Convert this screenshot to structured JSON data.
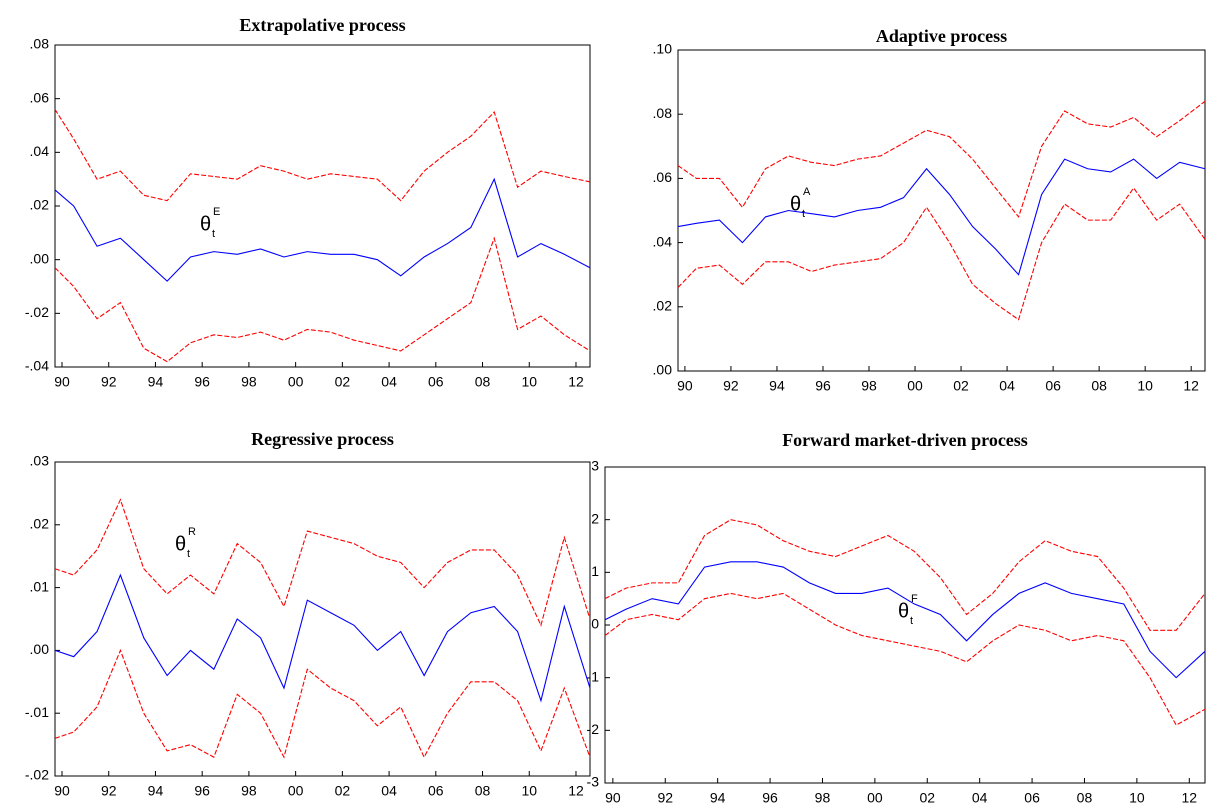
{
  "chart_data": [
    {
      "type": "line",
      "title": "Extrapolative process",
      "annotation": {
        "text": "θ",
        "sub": "t",
        "sup": "E"
      },
      "x": [
        1989.7,
        1990.5,
        1991.5,
        1992.5,
        1993.5,
        1994.5,
        1995.5,
        1996.5,
        1997.5,
        1998.5,
        1999.5,
        2000.5,
        2001.5,
        2002.5,
        2003.5,
        2004.5,
        2005.5,
        2006.5,
        2007.5,
        2008.5,
        2009.5,
        2010.5,
        2011.5,
        2012.6
      ],
      "xlim": [
        1989.7,
        2012.6
      ],
      "xticks": [
        {
          "value": 1990,
          "label": "90"
        },
        {
          "value": 1992,
          "label": "92"
        },
        {
          "value": 1994,
          "label": "94"
        },
        {
          "value": 1996,
          "label": "96"
        },
        {
          "value": 1998,
          "label": "98"
        },
        {
          "value": 2000,
          "label": "00"
        },
        {
          "value": 2002,
          "label": "02"
        },
        {
          "value": 2004,
          "label": "04"
        },
        {
          "value": 2006,
          "label": "06"
        },
        {
          "value": 2008,
          "label": "08"
        },
        {
          "value": 2010,
          "label": "10"
        },
        {
          "value": 2012,
          "label": "12"
        }
      ],
      "ylim": [
        -0.04,
        0.08
      ],
      "yticks": [
        {
          "value": -0.04,
          "label": "-.04"
        },
        {
          "value": -0.02,
          "label": "-.02"
        },
        {
          "value": 0,
          "label": ".00"
        },
        {
          "value": 0.02,
          "label": ".02"
        },
        {
          "value": 0.04,
          "label": ".04"
        },
        {
          "value": 0.06,
          "label": ".06"
        },
        {
          "value": 0.08,
          "label": ".08"
        }
      ],
      "series": [
        {
          "color": "#0000ff",
          "dashed": false,
          "values": [
            0.026,
            0.02,
            0.005,
            0.008,
            0.0,
            -0.008,
            0.001,
            0.003,
            0.002,
            0.004,
            0.001,
            0.003,
            0.002,
            0.002,
            0.0,
            -0.006,
            0.001,
            0.006,
            0.012,
            0.03,
            0.001,
            0.006,
            0.002,
            -0.003
          ]
        },
        {
          "color": "#ff0000",
          "dashed": true,
          "values": [
            0.056,
            0.045,
            0.03,
            0.033,
            0.024,
            0.022,
            0.032,
            0.031,
            0.03,
            0.035,
            0.033,
            0.03,
            0.032,
            0.031,
            0.03,
            0.022,
            0.033,
            0.04,
            0.046,
            0.055,
            0.027,
            0.033,
            0.031,
            0.029
          ]
        },
        {
          "color": "#ff0000",
          "dashed": true,
          "values": [
            -0.003,
            -0.01,
            -0.022,
            -0.016,
            -0.033,
            -0.038,
            -0.031,
            -0.028,
            -0.029,
            -0.027,
            -0.03,
            -0.026,
            -0.027,
            -0.03,
            -0.032,
            -0.034,
            -0.028,
            -0.022,
            -0.016,
            0.008,
            -0.026,
            -0.021,
            -0.028,
            -0.034
          ]
        }
      ]
    },
    {
      "type": "line",
      "title": "Adaptive process",
      "annotation": {
        "text": "θ",
        "sub": "t",
        "sup": "A"
      },
      "x": [
        1989.7,
        1990.5,
        1991.5,
        1992.5,
        1993.5,
        1994.5,
        1995.5,
        1996.5,
        1997.5,
        1998.5,
        1999.5,
        2000.5,
        2001.5,
        2002.5,
        2003.5,
        2004.5,
        2005.5,
        2006.5,
        2007.5,
        2008.5,
        2009.5,
        2010.5,
        2011.5,
        2012.6
      ],
      "xlim": [
        1989.7,
        2012.6
      ],
      "xticks": [
        {
          "value": 1990,
          "label": "90"
        },
        {
          "value": 1992,
          "label": "92"
        },
        {
          "value": 1994,
          "label": "94"
        },
        {
          "value": 1996,
          "label": "96"
        },
        {
          "value": 1998,
          "label": "98"
        },
        {
          "value": 2000,
          "label": "00"
        },
        {
          "value": 2002,
          "label": "02"
        },
        {
          "value": 2004,
          "label": "04"
        },
        {
          "value": 2006,
          "label": "06"
        },
        {
          "value": 2008,
          "label": "08"
        },
        {
          "value": 2010,
          "label": "10"
        },
        {
          "value": 2012,
          "label": "12"
        }
      ],
      "ylim": [
        0,
        0.1
      ],
      "yticks": [
        {
          "value": 0,
          "label": ".00"
        },
        {
          "value": 0.02,
          "label": ".02"
        },
        {
          "value": 0.04,
          "label": ".04"
        },
        {
          "value": 0.06,
          "label": ".06"
        },
        {
          "value": 0.08,
          "label": ".08"
        },
        {
          "value": 0.1,
          "label": ".10"
        }
      ],
      "series": [
        {
          "color": "#0000ff",
          "dashed": false,
          "values": [
            0.045,
            0.046,
            0.047,
            0.04,
            0.048,
            0.05,
            0.049,
            0.048,
            0.05,
            0.051,
            0.054,
            0.063,
            0.055,
            0.045,
            0.038,
            0.03,
            0.055,
            0.066,
            0.063,
            0.062,
            0.066,
            0.06,
            0.065,
            0.063
          ]
        },
        {
          "color": "#ff0000",
          "dashed": true,
          "values": [
            0.064,
            0.06,
            0.06,
            0.051,
            0.063,
            0.067,
            0.065,
            0.064,
            0.066,
            0.067,
            0.071,
            0.075,
            0.073,
            0.066,
            0.057,
            0.048,
            0.07,
            0.081,
            0.077,
            0.076,
            0.079,
            0.073,
            0.078,
            0.084
          ]
        },
        {
          "color": "#ff0000",
          "dashed": true,
          "values": [
            0.026,
            0.032,
            0.033,
            0.027,
            0.034,
            0.034,
            0.031,
            0.033,
            0.034,
            0.035,
            0.04,
            0.051,
            0.04,
            0.027,
            0.021,
            0.016,
            0.04,
            0.052,
            0.047,
            0.047,
            0.057,
            0.047,
            0.052,
            0.041
          ]
        }
      ]
    },
    {
      "type": "line",
      "title": "Regressive process",
      "annotation": {
        "text": "θ",
        "sub": "t",
        "sup": "R"
      },
      "x": [
        1989.7,
        1990.5,
        1991.5,
        1992.5,
        1993.5,
        1994.5,
        1995.5,
        1996.5,
        1997.5,
        1998.5,
        1999.5,
        2000.5,
        2001.5,
        2002.5,
        2003.5,
        2004.5,
        2005.5,
        2006.5,
        2007.5,
        2008.5,
        2009.5,
        2010.5,
        2011.5,
        2012.6
      ],
      "xlim": [
        1989.7,
        2012.6
      ],
      "xticks": [
        {
          "value": 1990,
          "label": "90"
        },
        {
          "value": 1992,
          "label": "92"
        },
        {
          "value": 1994,
          "label": "94"
        },
        {
          "value": 1996,
          "label": "96"
        },
        {
          "value": 1998,
          "label": "98"
        },
        {
          "value": 2000,
          "label": "00"
        },
        {
          "value": 2002,
          "label": "02"
        },
        {
          "value": 2004,
          "label": "04"
        },
        {
          "value": 2006,
          "label": "06"
        },
        {
          "value": 2008,
          "label": "08"
        },
        {
          "value": 2010,
          "label": "10"
        },
        {
          "value": 2012,
          "label": "12"
        }
      ],
      "ylim": [
        -0.02,
        0.03
      ],
      "yticks": [
        {
          "value": -0.02,
          "label": "-.02"
        },
        {
          "value": -0.01,
          "label": "-.01"
        },
        {
          "value": 0,
          "label": ".00"
        },
        {
          "value": 0.01,
          "label": ".01"
        },
        {
          "value": 0.02,
          "label": ".02"
        },
        {
          "value": 0.03,
          "label": ".03"
        }
      ],
      "series": [
        {
          "color": "#0000ff",
          "dashed": false,
          "values": [
            0.0,
            -0.001,
            0.003,
            0.012,
            0.002,
            -0.004,
            0.0,
            -0.003,
            0.005,
            0.002,
            -0.006,
            0.008,
            0.006,
            0.004,
            0.0,
            0.003,
            -0.004,
            0.003,
            0.006,
            0.007,
            0.003,
            -0.008,
            0.007,
            -0.006
          ]
        },
        {
          "color": "#ff0000",
          "dashed": true,
          "values": [
            0.013,
            0.012,
            0.016,
            0.024,
            0.013,
            0.009,
            0.012,
            0.009,
            0.017,
            0.014,
            0.007,
            0.019,
            0.018,
            0.017,
            0.015,
            0.014,
            0.01,
            0.014,
            0.016,
            0.016,
            0.012,
            0.004,
            0.018,
            0.005
          ]
        },
        {
          "color": "#ff0000",
          "dashed": true,
          "values": [
            -0.014,
            -0.013,
            -0.009,
            0.0,
            -0.01,
            -0.016,
            -0.015,
            -0.017,
            -0.007,
            -0.01,
            -0.017,
            -0.003,
            -0.006,
            -0.008,
            -0.012,
            -0.009,
            -0.017,
            -0.01,
            -0.005,
            -0.005,
            -0.008,
            -0.016,
            -0.006,
            -0.017
          ]
        }
      ]
    },
    {
      "type": "line",
      "title": "Forward market-driven process",
      "annotation": {
        "text": "θ",
        "sub": "t",
        "sup": "F"
      },
      "x": [
        1989.7,
        1990.5,
        1991.5,
        1992.5,
        1993.5,
        1994.5,
        1995.5,
        1996.5,
        1997.5,
        1998.5,
        1999.5,
        2000.5,
        2001.5,
        2002.5,
        2003.5,
        2004.5,
        2005.5,
        2006.5,
        2007.5,
        2008.5,
        2009.5,
        2010.5,
        2011.5,
        2012.6
      ],
      "xlim": [
        1989.7,
        2012.6
      ],
      "xticks": [
        {
          "value": 1990,
          "label": "90"
        },
        {
          "value": 1992,
          "label": "92"
        },
        {
          "value": 1994,
          "label": "94"
        },
        {
          "value": 1996,
          "label": "96"
        },
        {
          "value": 1998,
          "label": "98"
        },
        {
          "value": 2000,
          "label": "00"
        },
        {
          "value": 2002,
          "label": "02"
        },
        {
          "value": 2004,
          "label": "04"
        },
        {
          "value": 2006,
          "label": "06"
        },
        {
          "value": 2008,
          "label": "08"
        },
        {
          "value": 2010,
          "label": "10"
        },
        {
          "value": 2012,
          "label": "12"
        }
      ],
      "ylim": [
        -3,
        3
      ],
      "yticks": [
        -3,
        -2,
        -1,
        0,
        1,
        2,
        3
      ],
      "series": [
        {
          "color": "#0000ff",
          "dashed": false,
          "values": [
            0.1,
            0.3,
            0.5,
            0.4,
            1.1,
            1.2,
            1.2,
            1.1,
            0.8,
            0.6,
            0.6,
            0.7,
            0.4,
            0.2,
            -0.3,
            0.2,
            0.6,
            0.8,
            0.6,
            0.5,
            0.4,
            -0.5,
            -1.0,
            -0.5
          ]
        },
        {
          "color": "#ff0000",
          "dashed": true,
          "values": [
            0.5,
            0.7,
            0.8,
            0.8,
            1.7,
            2.0,
            1.9,
            1.6,
            1.4,
            1.3,
            1.5,
            1.7,
            1.4,
            0.9,
            0.2,
            0.6,
            1.2,
            1.6,
            1.4,
            1.3,
            0.7,
            -0.1,
            -0.1,
            0.6
          ]
        },
        {
          "color": "#ff0000",
          "dashed": true,
          "values": [
            -0.2,
            0.1,
            0.2,
            0.1,
            0.5,
            0.6,
            0.5,
            0.6,
            0.3,
            0.0,
            -0.2,
            -0.3,
            -0.4,
            -0.5,
            -0.7,
            -0.3,
            0.0,
            -0.1,
            -0.3,
            -0.2,
            -0.3,
            -1.0,
            -1.9,
            -1.6
          ]
        }
      ]
    }
  ]
}
